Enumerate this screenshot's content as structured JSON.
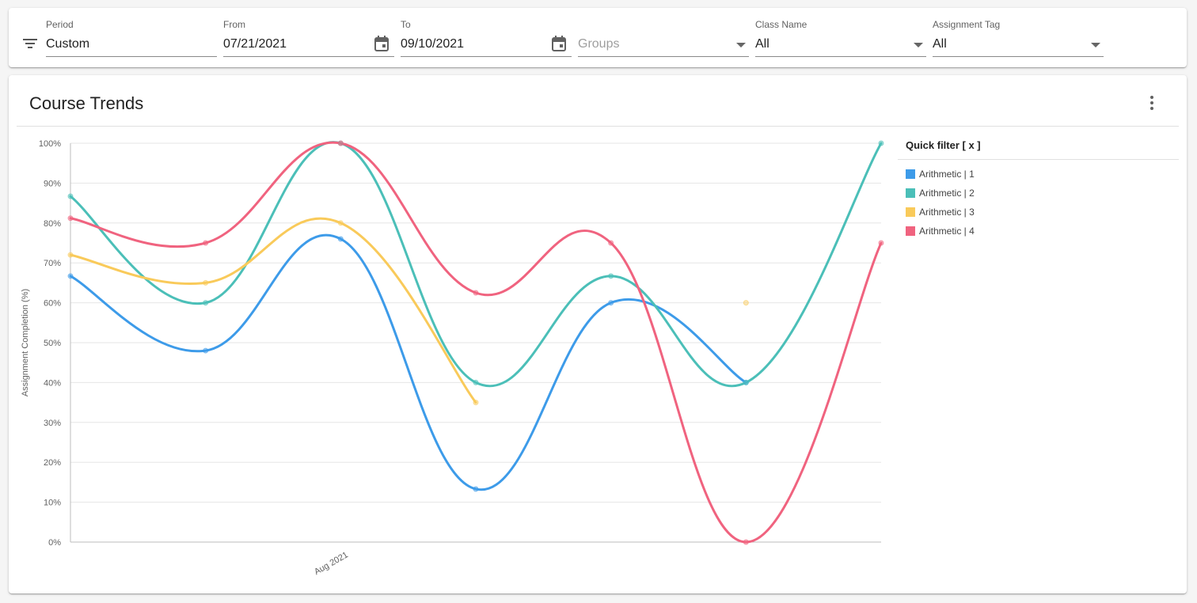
{
  "filters": {
    "period": {
      "label": "Period",
      "value": "Custom"
    },
    "from": {
      "label": "From",
      "value": "07/21/2021"
    },
    "to": {
      "label": "To",
      "value": "09/10/2021"
    },
    "groups": {
      "placeholder": "Groups"
    },
    "class_name": {
      "label": "Class Name",
      "value": "All"
    },
    "assignment_tag": {
      "label": "Assignment Tag",
      "value": "All"
    }
  },
  "card": {
    "title": "Course Trends"
  },
  "legend": {
    "title": "Quick filter [ x ]"
  },
  "chart_data": {
    "type": "line",
    "title": "",
    "xlabel": "",
    "ylabel": "Assignment Completion (%)",
    "ylim": [
      0,
      100
    ],
    "yticks": [
      "0%",
      "10%",
      "20%",
      "30%",
      "40%",
      "50%",
      "60%",
      "70%",
      "80%",
      "90%",
      "100%"
    ],
    "x_tick_labels": [
      {
        "index": 2,
        "label": "Aug 2021"
      }
    ],
    "point_count": 7,
    "grid": true,
    "legend_position": "right",
    "series": [
      {
        "name": "Arithmetic | 1",
        "color": "#3d9be9",
        "values": [
          66.7,
          48,
          76,
          13.3,
          60,
          40,
          null
        ]
      },
      {
        "name": "Arithmetic | 2",
        "color": "#4bbfb8",
        "values": [
          86.7,
          60,
          100,
          40,
          66.7,
          40,
          100
        ]
      },
      {
        "name": "Arithmetic | 3",
        "color": "#f9ca5a",
        "values": [
          72,
          65,
          80,
          35,
          null,
          60,
          null
        ]
      },
      {
        "name": "Arithmetic | 4",
        "color": "#f0637f",
        "values": [
          81.2,
          75,
          100,
          62.5,
          75,
          0,
          75
        ]
      }
    ]
  }
}
